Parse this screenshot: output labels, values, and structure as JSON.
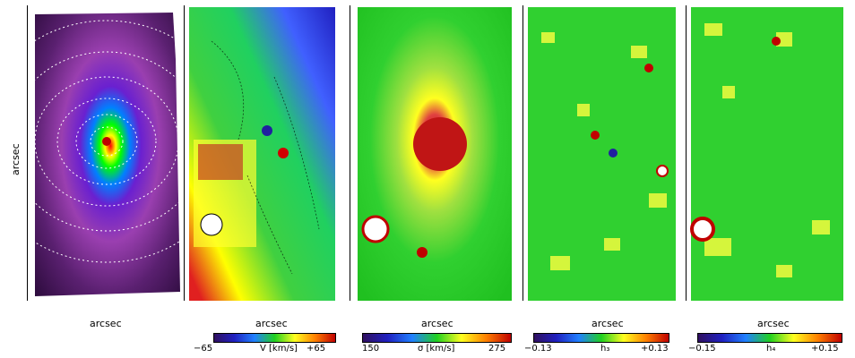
{
  "panels": [
    {
      "id": "flux",
      "xlabel": "arcsec",
      "ylabel": "arcsec"
    },
    {
      "id": "velocity",
      "xlabel": "arcsec"
    },
    {
      "id": "dispersion",
      "xlabel": "arcsec"
    },
    {
      "id": "h3",
      "xlabel": "arcsec"
    },
    {
      "id": "h4",
      "xlabel": "arcsec"
    }
  ],
  "colorbars": [
    {
      "min": "−65",
      "label": "V  [km/s]",
      "max": "+65"
    },
    {
      "min": "150",
      "label": "σ  [km/s]",
      "max": "275"
    },
    {
      "min": "−0.13",
      "label": "h₃",
      "max": "+0.13"
    },
    {
      "min": "−0.15",
      "label": "h₄",
      "max": "+0.15"
    }
  ]
}
